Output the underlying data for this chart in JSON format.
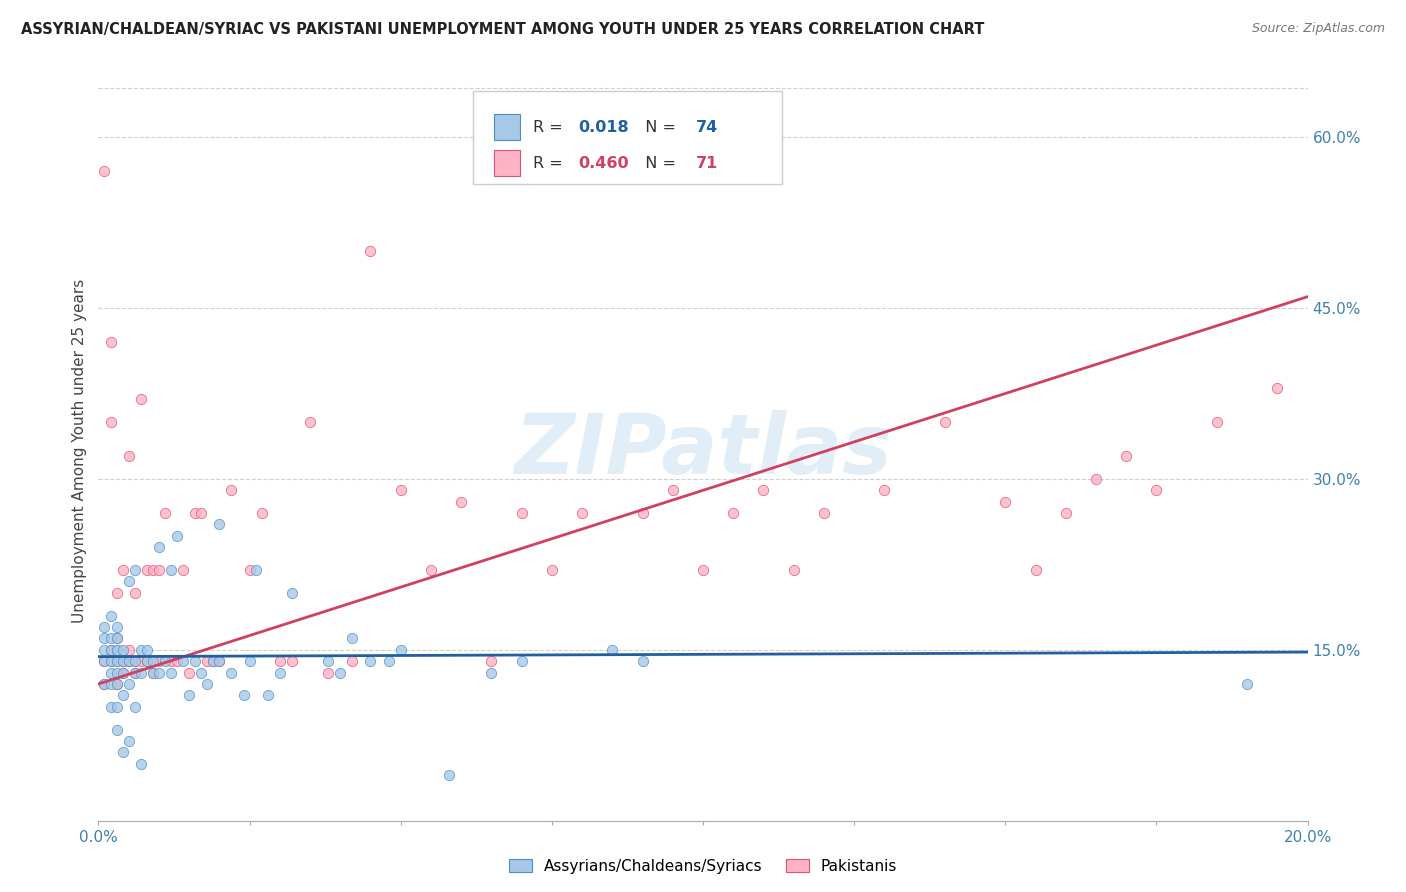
{
  "title": "ASSYRIAN/CHALDEAN/SYRIAC VS PAKISTANI UNEMPLOYMENT AMONG YOUTH UNDER 25 YEARS CORRELATION CHART",
  "source": "Source: ZipAtlas.com",
  "ylabel": "Unemployment Among Youth under 25 years",
  "xlim": [
    0.0,
    0.2
  ],
  "ylim": [
    0.0,
    0.65
  ],
  "xtick_positions": [
    0.0,
    0.025,
    0.05,
    0.075,
    0.1,
    0.125,
    0.15,
    0.175,
    0.2
  ],
  "xtick_labels": [
    "0.0%",
    "",
    "",
    "",
    "",
    "",
    "",
    "",
    "20.0%"
  ],
  "ytick_positions": [
    0.15,
    0.3,
    0.45,
    0.6
  ],
  "ytick_labels": [
    "15.0%",
    "30.0%",
    "45.0%",
    "60.0%"
  ],
  "blue_color": "#a8c8e8",
  "pink_color": "#ffb3c6",
  "blue_edge_color": "#4a90c4",
  "pink_edge_color": "#e05070",
  "blue_line_color": "#2060a0",
  "pink_line_color": "#d04060",
  "blue_R": 0.018,
  "blue_N": 74,
  "pink_R": 0.46,
  "pink_N": 71,
  "blue_scatter_x": [
    0.001,
    0.001,
    0.001,
    0.001,
    0.001,
    0.002,
    0.002,
    0.002,
    0.002,
    0.002,
    0.002,
    0.002,
    0.003,
    0.003,
    0.003,
    0.003,
    0.003,
    0.003,
    0.003,
    0.003,
    0.003,
    0.004,
    0.004,
    0.004,
    0.004,
    0.004,
    0.005,
    0.005,
    0.005,
    0.005,
    0.006,
    0.006,
    0.006,
    0.006,
    0.007,
    0.007,
    0.007,
    0.008,
    0.008,
    0.009,
    0.009,
    0.01,
    0.01,
    0.011,
    0.012,
    0.012,
    0.013,
    0.014,
    0.015,
    0.016,
    0.017,
    0.018,
    0.019,
    0.02,
    0.02,
    0.022,
    0.024,
    0.025,
    0.026,
    0.028,
    0.03,
    0.032,
    0.038,
    0.04,
    0.042,
    0.045,
    0.048,
    0.05,
    0.058,
    0.065,
    0.07,
    0.085,
    0.09,
    0.19
  ],
  "blue_scatter_y": [
    0.12,
    0.14,
    0.15,
    0.16,
    0.17,
    0.1,
    0.12,
    0.13,
    0.14,
    0.15,
    0.16,
    0.18,
    0.08,
    0.1,
    0.12,
    0.13,
    0.14,
    0.15,
    0.15,
    0.16,
    0.17,
    0.06,
    0.11,
    0.13,
    0.14,
    0.15,
    0.07,
    0.12,
    0.14,
    0.21,
    0.1,
    0.13,
    0.14,
    0.22,
    0.05,
    0.13,
    0.15,
    0.14,
    0.15,
    0.13,
    0.14,
    0.13,
    0.24,
    0.14,
    0.13,
    0.22,
    0.25,
    0.14,
    0.11,
    0.14,
    0.13,
    0.12,
    0.14,
    0.14,
    0.26,
    0.13,
    0.11,
    0.14,
    0.22,
    0.11,
    0.13,
    0.2,
    0.14,
    0.13,
    0.16,
    0.14,
    0.14,
    0.15,
    0.04,
    0.13,
    0.14,
    0.15,
    0.14,
    0.12
  ],
  "pink_scatter_x": [
    0.001,
    0.001,
    0.001,
    0.002,
    0.002,
    0.002,
    0.002,
    0.003,
    0.003,
    0.003,
    0.003,
    0.004,
    0.004,
    0.004,
    0.005,
    0.005,
    0.005,
    0.006,
    0.006,
    0.006,
    0.007,
    0.007,
    0.008,
    0.008,
    0.009,
    0.009,
    0.01,
    0.01,
    0.011,
    0.012,
    0.013,
    0.014,
    0.015,
    0.016,
    0.017,
    0.018,
    0.019,
    0.02,
    0.022,
    0.025,
    0.027,
    0.03,
    0.032,
    0.035,
    0.038,
    0.042,
    0.045,
    0.05,
    0.055,
    0.06,
    0.065,
    0.07,
    0.075,
    0.08,
    0.09,
    0.095,
    0.1,
    0.105,
    0.11,
    0.115,
    0.12,
    0.13,
    0.14,
    0.15,
    0.155,
    0.16,
    0.165,
    0.17,
    0.175,
    0.185,
    0.195
  ],
  "pink_scatter_y": [
    0.12,
    0.14,
    0.57,
    0.14,
    0.15,
    0.35,
    0.42,
    0.12,
    0.14,
    0.16,
    0.2,
    0.13,
    0.14,
    0.22,
    0.14,
    0.15,
    0.32,
    0.13,
    0.14,
    0.2,
    0.14,
    0.37,
    0.14,
    0.22,
    0.13,
    0.22,
    0.14,
    0.22,
    0.27,
    0.14,
    0.14,
    0.22,
    0.13,
    0.27,
    0.27,
    0.14,
    0.14,
    0.14,
    0.29,
    0.22,
    0.27,
    0.14,
    0.14,
    0.35,
    0.13,
    0.14,
    0.5,
    0.29,
    0.22,
    0.28,
    0.14,
    0.27,
    0.22,
    0.27,
    0.27,
    0.29,
    0.22,
    0.27,
    0.29,
    0.22,
    0.27,
    0.29,
    0.35,
    0.28,
    0.22,
    0.27,
    0.3,
    0.32,
    0.29,
    0.35,
    0.38
  ],
  "watermark_text": "ZIPatlas",
  "watermark_color": "#c5dff0",
  "watermark_alpha": 0.5,
  "background_color": "#ffffff",
  "grid_color": "#d0d0d0",
  "legend_blue_r_color": "#2060a0",
  "legend_pink_r_color": "#d04060",
  "legend_n_color": "#2060a0"
}
